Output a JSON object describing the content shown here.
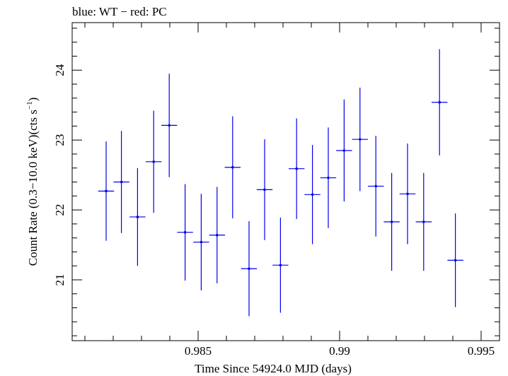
{
  "chart_data": {
    "type": "scatter",
    "title": "blue: WT − red: PC",
    "xlabel": "Time Since 54924.0 MJD (days)",
    "ylabel_main": "Count Rate (0.3−10.0 keV)(cts s",
    "ylabel_sup": "−1",
    "ylabel_close": ")",
    "xlim": [
      0.98055,
      0.99565
    ],
    "ylim": [
      20.13,
      24.68
    ],
    "xticks": [
      0.985,
      0.99,
      0.995
    ],
    "xtick_labels": [
      "0.985",
      "0.99",
      "0.995"
    ],
    "yticks": [
      21,
      22,
      23,
      24
    ],
    "ytick_labels": [
      "21",
      "22",
      "23",
      "24"
    ],
    "grid": false,
    "series": [
      {
        "color": "#0000ee",
        "xerr": 0.00028,
        "points": [
          {
            "x": 0.98175,
            "y": 22.27,
            "yerr": 0.71
          },
          {
            "x": 0.98229,
            "y": 22.4,
            "yerr": 0.73
          },
          {
            "x": 0.98286,
            "y": 21.9,
            "yerr": 0.7
          },
          {
            "x": 0.98343,
            "y": 22.69,
            "yerr": 0.73
          },
          {
            "x": 0.98398,
            "y": 23.21,
            "yerr": 0.74
          },
          {
            "x": 0.98454,
            "y": 21.68,
            "yerr": 0.69
          },
          {
            "x": 0.98511,
            "y": 21.54,
            "yerr": 0.69
          },
          {
            "x": 0.98567,
            "y": 21.64,
            "yerr": 0.69
          },
          {
            "x": 0.98622,
            "y": 22.61,
            "yerr": 0.73
          },
          {
            "x": 0.9868,
            "y": 21.16,
            "yerr": 0.68
          },
          {
            "x": 0.98735,
            "y": 22.29,
            "yerr": 0.72
          },
          {
            "x": 0.98791,
            "y": 21.21,
            "yerr": 0.68
          },
          {
            "x": 0.98848,
            "y": 22.59,
            "yerr": 0.72
          },
          {
            "x": 0.98904,
            "y": 22.22,
            "yerr": 0.71
          },
          {
            "x": 0.9896,
            "y": 22.46,
            "yerr": 0.72
          },
          {
            "x": 0.99016,
            "y": 22.85,
            "yerr": 0.73
          },
          {
            "x": 0.99072,
            "y": 23.01,
            "yerr": 0.74
          },
          {
            "x": 0.99128,
            "y": 22.34,
            "yerr": 0.72
          },
          {
            "x": 0.99184,
            "y": 21.83,
            "yerr": 0.7
          },
          {
            "x": 0.9924,
            "y": 22.23,
            "yerr": 0.72
          },
          {
            "x": 0.99297,
            "y": 21.83,
            "yerr": 0.7
          },
          {
            "x": 0.99353,
            "y": 23.54,
            "yerr": 0.76
          },
          {
            "x": 0.99409,
            "y": 21.28,
            "yerr": 0.67
          }
        ]
      }
    ]
  }
}
